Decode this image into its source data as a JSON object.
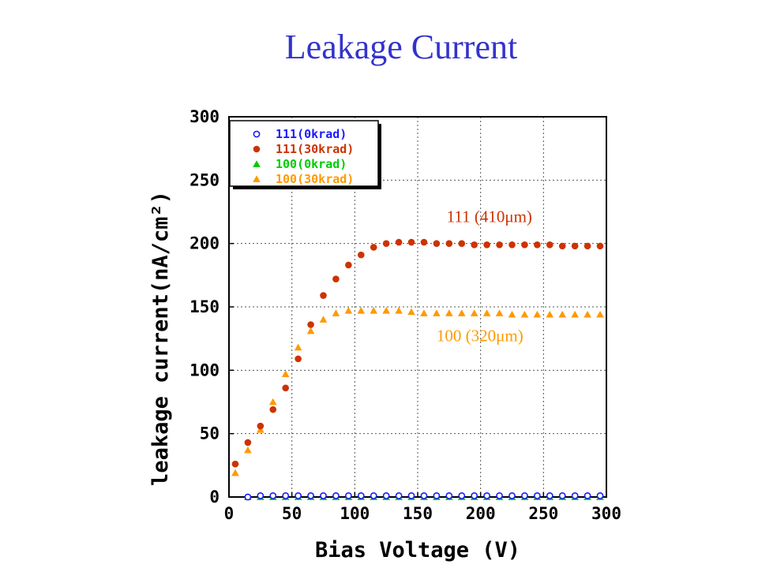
{
  "slide": {
    "title": "Leakage Current"
  },
  "chart_data": {
    "type": "scatter",
    "xlabel": "Bias Voltage (V)",
    "ylabel": "leakage current(nA/cm²)",
    "xlim": [
      0,
      300
    ],
    "ylim": [
      0,
      300
    ],
    "x_ticks": [
      "0",
      "50",
      "100",
      "150",
      "200",
      "250",
      "300"
    ],
    "y_ticks": [
      "0",
      "50",
      "100",
      "150",
      "200",
      "250",
      "300"
    ],
    "grid": true,
    "legend_position": "top-left",
    "series": [
      {
        "name": "111(0krad)",
        "marker": "circle-open",
        "color": "#1a1aff",
        "x": [
          15,
          25,
          35,
          45,
          55,
          65,
          75,
          85,
          95,
          105,
          115,
          125,
          135,
          145,
          155,
          165,
          175,
          185,
          195,
          205,
          215,
          225,
          235,
          245,
          255,
          265,
          275,
          285,
          295
        ],
        "y": [
          0,
          1,
          1,
          1,
          1,
          1,
          1,
          1,
          1,
          1,
          1,
          1,
          1,
          1,
          1,
          1,
          1,
          1,
          1,
          1,
          1,
          1,
          1,
          1,
          1,
          1,
          1,
          1,
          1
        ]
      },
      {
        "name": "111(30krad)",
        "marker": "circle",
        "color": "#cc3300",
        "x": [
          5,
          15,
          25,
          35,
          45,
          55,
          65,
          75,
          85,
          95,
          105,
          115,
          125,
          135,
          145,
          155,
          165,
          175,
          185,
          195,
          205,
          215,
          225,
          235,
          245,
          255,
          265,
          275,
          285,
          295
        ],
        "y": [
          26,
          43,
          56,
          69,
          86,
          109,
          136,
          159,
          172,
          183,
          191,
          197,
          200,
          201,
          201,
          201,
          200,
          200,
          200,
          199,
          199,
          199,
          199,
          199,
          199,
          199,
          198,
          198,
          198,
          198
        ]
      },
      {
        "name": "100(0krad)",
        "marker": "triangle",
        "color": "#00cc00",
        "x": [
          15,
          25,
          35,
          45,
          55,
          65,
          75,
          85,
          95,
          105,
          115,
          125,
          135,
          145,
          155,
          165,
          175,
          185,
          195,
          205,
          215,
          225,
          235,
          245,
          255,
          265,
          275,
          285,
          295
        ],
        "y": [
          0,
          0,
          0,
          0,
          0,
          0,
          0,
          0,
          0,
          0,
          0,
          0,
          0,
          0,
          0,
          0,
          0,
          0,
          0,
          0,
          0,
          0,
          0,
          0,
          0,
          0,
          0,
          0,
          0
        ]
      },
      {
        "name": "100(30krad)",
        "marker": "triangle",
        "color": "#ff9900",
        "x": [
          5,
          15,
          25,
          35,
          45,
          55,
          65,
          75,
          85,
          95,
          105,
          115,
          125,
          135,
          145,
          155,
          165,
          175,
          185,
          195,
          205,
          215,
          225,
          235,
          245,
          255,
          265,
          275,
          285,
          295
        ],
        "y": [
          19,
          37,
          53,
          75,
          97,
          118,
          131,
          140,
          145,
          147,
          147,
          147,
          147,
          147,
          146,
          145,
          145,
          145,
          145,
          145,
          145,
          145,
          144,
          144,
          144,
          144,
          144,
          144,
          144,
          144
        ]
      }
    ],
    "annotations": [
      {
        "text": "111 (410μm)",
        "color": "#cc3300",
        "x": 173,
        "y": 217
      },
      {
        "text": "100 (320μm)",
        "color": "#ff9900",
        "x": 165,
        "y": 123
      }
    ]
  }
}
